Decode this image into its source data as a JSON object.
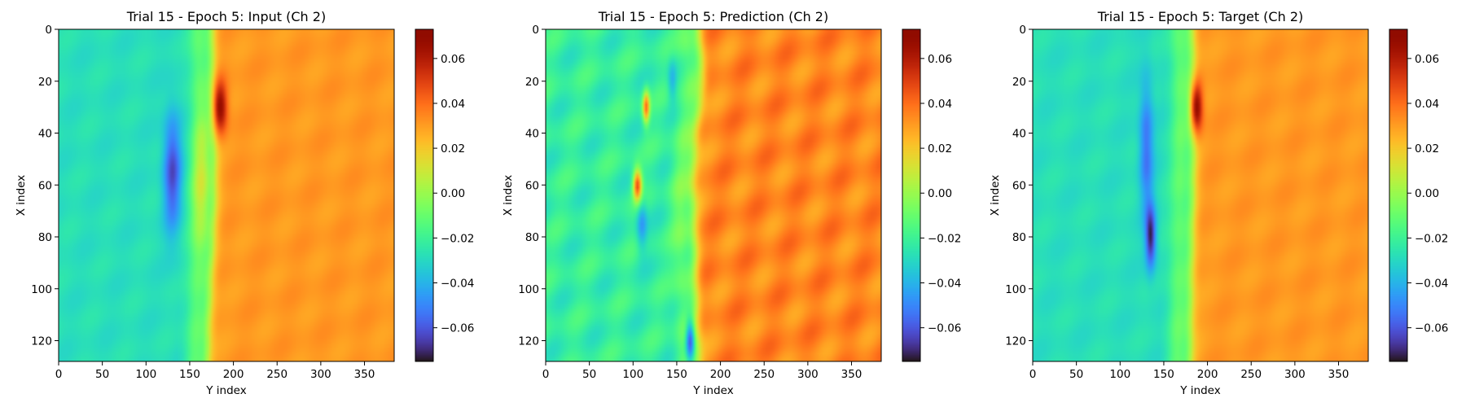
{
  "chart_data": [
    {
      "type": "heatmap",
      "title": "Trial 15 - Epoch 5: Input (Ch 2)",
      "xlabel": "Y index",
      "ylabel": "X index",
      "xlim": [
        0,
        384
      ],
      "ylim": [
        128,
        0
      ],
      "xticks": [
        0,
        50,
        100,
        150,
        200,
        250,
        300,
        350
      ],
      "yticks": [
        0,
        20,
        40,
        60,
        80,
        100,
        120
      ],
      "colormap": "turbo",
      "colorbar": {
        "range": [
          -0.075,
          0.073
        ],
        "ticks": [
          0.06,
          0.04,
          0.02,
          0.0,
          -0.02,
          -0.04,
          -0.06
        ],
        "tick_labels": [
          "0.06",
          "0.04",
          "0.02",
          "0.00",
          "−0.02",
          "−0.04",
          "−0.06"
        ]
      },
      "field": {
        "left_value": -0.028,
        "right_value": 0.031,
        "front_y": [
          [
            0,
            175
          ],
          [
            20,
            176
          ],
          [
            40,
            177
          ],
          [
            60,
            176
          ],
          [
            80,
            175
          ],
          [
            100,
            173
          ],
          [
            128,
            170
          ]
        ],
        "features": [
          {
            "x": 55,
            "y": 130,
            "value": -0.063,
            "extent_x": 22,
            "extent_y": 10
          },
          {
            "x": 30,
            "y": 185,
            "value": 0.07,
            "extent_x": 10,
            "extent_y": 8
          },
          {
            "x": 60,
            "y": 165,
            "value": -0.005,
            "extent_x": 25,
            "extent_y": 12
          }
        ]
      }
    },
    {
      "type": "heatmap",
      "title": "Trial 15 - Epoch 5: Prediction (Ch 2)",
      "xlabel": "Y index",
      "ylabel": "X index",
      "xlim": [
        0,
        384
      ],
      "ylim": [
        128,
        0
      ],
      "xticks": [
        0,
        50,
        100,
        150,
        200,
        250,
        300,
        350
      ],
      "yticks": [
        0,
        20,
        40,
        60,
        80,
        100,
        120
      ],
      "colormap": "turbo",
      "colorbar": {
        "range": [
          -0.075,
          0.073
        ],
        "ticks": [
          0.06,
          0.04,
          0.02,
          0.0,
          -0.02,
          -0.04,
          -0.06
        ],
        "tick_labels": [
          "0.06",
          "0.04",
          "0.02",
          "0.00",
          "−0.02",
          "−0.04",
          "−0.06"
        ]
      },
      "field": {
        "left_value": -0.022,
        "right_value": 0.035,
        "front_y": [
          [
            0,
            175
          ],
          [
            20,
            180
          ],
          [
            40,
            172
          ],
          [
            60,
            168
          ],
          [
            80,
            170
          ],
          [
            100,
            172
          ],
          [
            128,
            175
          ]
        ],
        "features": [
          {
            "x": 120,
            "y": 165,
            "value": -0.07,
            "extent_x": 8,
            "extent_y": 5
          },
          {
            "x": 60,
            "y": 105,
            "value": 0.048,
            "extent_x": 6,
            "extent_y": 5
          },
          {
            "x": 30,
            "y": 115,
            "value": 0.04,
            "extent_x": 6,
            "extent_y": 4
          },
          {
            "x": 75,
            "y": 110,
            "value": -0.045,
            "extent_x": 10,
            "extent_y": 6
          },
          {
            "x": 20,
            "y": 145,
            "value": -0.04,
            "extent_x": 8,
            "extent_y": 5
          }
        ]
      }
    },
    {
      "type": "heatmap",
      "title": "Trial 15 - Epoch 5: Target (Ch 2)",
      "xlabel": "Y index",
      "ylabel": "X index",
      "xlim": [
        0,
        384
      ],
      "ylim": [
        128,
        0
      ],
      "xticks": [
        0,
        50,
        100,
        150,
        200,
        250,
        300,
        350
      ],
      "yticks": [
        0,
        20,
        40,
        60,
        80,
        100,
        120
      ],
      "colormap": "turbo",
      "colorbar": {
        "range": [
          -0.075,
          0.073
        ],
        "ticks": [
          0.06,
          0.04,
          0.02,
          0.0,
          -0.02,
          -0.04,
          -0.06
        ],
        "tick_labels": [
          "0.06",
          "0.04",
          "0.02",
          "0.00",
          "−0.02",
          "−0.04",
          "−0.06"
        ]
      },
      "field": {
        "left_value": -0.028,
        "right_value": 0.031,
        "front_y": [
          [
            0,
            182
          ],
          [
            20,
            184
          ],
          [
            40,
            184
          ],
          [
            60,
            183
          ],
          [
            80,
            182
          ],
          [
            100,
            181
          ],
          [
            128,
            180
          ]
        ],
        "features": [
          {
            "x": 80,
            "y": 135,
            "value": -0.072,
            "extent_x": 12,
            "extent_y": 6
          },
          {
            "x": 45,
            "y": 130,
            "value": -0.055,
            "extent_x": 25,
            "extent_y": 8
          },
          {
            "x": 30,
            "y": 188,
            "value": 0.07,
            "extent_x": 10,
            "extent_y": 7
          }
        ]
      }
    }
  ]
}
